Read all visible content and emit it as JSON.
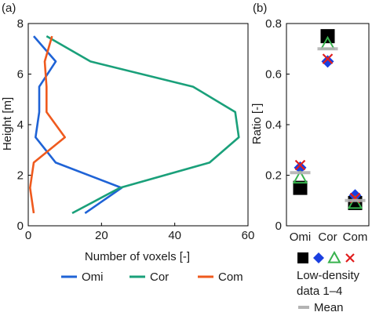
{
  "chart_data": [
    {
      "panel_label": "(a)",
      "type": "line",
      "xlabel": "Number of voxels [-]",
      "ylabel": "Height [m]",
      "xlim": [
        0,
        60
      ],
      "ylim": [
        0,
        8
      ],
      "xticks": [
        "0",
        "20",
        "40",
        "60"
      ],
      "yticks": [
        "0",
        "2",
        "4",
        "6",
        "8"
      ],
      "grid": false,
      "legend_position": "bottom",
      "series": [
        {
          "name": "Omi",
          "color": "#1f63d6",
          "points": [
            [
              1.5,
              7.5
            ],
            [
              7.5,
              6.5
            ],
            [
              3,
              5.5
            ],
            [
              3,
              4.5
            ],
            [
              2,
              3.5
            ],
            [
              7.5,
              2.5
            ],
            [
              25.5,
              1.5
            ],
            [
              15.5,
              0.5
            ]
          ]
        },
        {
          "name": "Cor",
          "color": "#1aa07a",
          "points": [
            [
              5,
              7.5
            ],
            [
              17,
              6.5
            ],
            [
              45,
              5.5
            ],
            [
              56.5,
              4.5
            ],
            [
              57.5,
              3.5
            ],
            [
              49.5,
              2.5
            ],
            [
              25,
              1.5
            ],
            [
              12,
              0.5
            ]
          ]
        },
        {
          "name": "Com",
          "color": "#ef5a1e",
          "points": [
            [
              6.5,
              7.5
            ],
            [
              4.5,
              6.5
            ],
            [
              5,
              5.5
            ],
            [
              5,
              4.5
            ],
            [
              10,
              3.5
            ],
            [
              1.5,
              2.5
            ],
            [
              0.5,
              1.5
            ],
            [
              1.5,
              0.5
            ]
          ]
        }
      ]
    },
    {
      "panel_label": "(b)",
      "type": "scatter",
      "ylabel": "Ratio [-]",
      "ylim": [
        0,
        0.8
      ],
      "yticks": [
        "0",
        "0.2",
        "0.4",
        "0.6",
        "0.8"
      ],
      "categories": [
        "Omi",
        "Cor",
        "Com"
      ],
      "grid": false,
      "series": [
        {
          "name": "",
          "marker": "square",
          "color": "#000000",
          "values": [
            0.15,
            0.75,
            0.09
          ]
        },
        {
          "name": "",
          "marker": "diamond",
          "color": "#1a3fe0",
          "values": [
            0.23,
            0.65,
            0.12
          ]
        },
        {
          "name": "",
          "marker": "triangle",
          "color": "#37b24d",
          "values": [
            0.19,
            0.72,
            0.09
          ]
        },
        {
          "name": "",
          "marker": "cross",
          "color": "#e01e1e",
          "values": [
            0.24,
            0.66,
            0.11
          ]
        }
      ],
      "mean": {
        "color": "#b3b3b3",
        "values": [
          0.21,
          0.7,
          0.1
        ]
      },
      "legend": {
        "line1": "Low-density",
        "line2": "data 1–4",
        "mean_label": "Mean"
      }
    }
  ]
}
